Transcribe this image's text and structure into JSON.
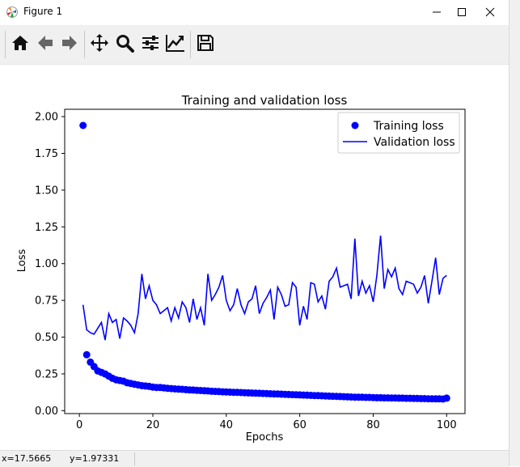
{
  "window": {
    "title": "Figure 1",
    "buttons": {
      "minimize": "minimize-icon",
      "maximize": "maximize-icon",
      "close": "close-icon"
    }
  },
  "toolbar": {
    "buttons": [
      "home-icon",
      "back-arrow-icon",
      "forward-arrow-icon",
      "pan-icon",
      "zoom-icon",
      "configure-subplots-icon",
      "edit-axis-icon",
      "save-icon"
    ]
  },
  "status": {
    "x": "x=17.5665",
    "y": "y=1.97331"
  },
  "colors": {
    "series": "#0000ff",
    "toolbar_bg": "#f0f0f0"
  },
  "chart_data": {
    "type": "line",
    "title": "Training and validation loss",
    "xlabel": "Epochs",
    "ylabel": "Loss",
    "xlim": [
      -4,
      105
    ],
    "ylim": [
      -0.02,
      2.05
    ],
    "xticks": [
      0,
      20,
      40,
      60,
      80,
      100
    ],
    "yticks": [
      0.0,
      0.25,
      0.5,
      0.75,
      1.0,
      1.25,
      1.5,
      1.75,
      2.0
    ],
    "xtick_labels": [
      "0",
      "20",
      "40",
      "60",
      "80",
      "100"
    ],
    "ytick_labels": [
      "0.00",
      "0.25",
      "0.50",
      "0.75",
      "1.00",
      "1.25",
      "1.50",
      "1.75",
      "2.00"
    ],
    "legend": {
      "placement": "upper right",
      "entries": [
        "Training loss",
        "Validation loss"
      ]
    },
    "x": [
      1,
      2,
      3,
      4,
      5,
      6,
      7,
      8,
      9,
      10,
      11,
      12,
      13,
      14,
      15,
      16,
      17,
      18,
      19,
      20,
      21,
      22,
      23,
      24,
      25,
      26,
      27,
      28,
      29,
      30,
      31,
      32,
      33,
      34,
      35,
      36,
      37,
      38,
      39,
      40,
      41,
      42,
      43,
      44,
      45,
      46,
      47,
      48,
      49,
      50,
      51,
      52,
      53,
      54,
      55,
      56,
      57,
      58,
      59,
      60,
      61,
      62,
      63,
      64,
      65,
      66,
      67,
      68,
      69,
      70,
      71,
      72,
      73,
      74,
      75,
      76,
      77,
      78,
      79,
      80,
      81,
      82,
      83,
      84,
      85,
      86,
      87,
      88,
      89,
      90,
      91,
      92,
      93,
      94,
      95,
      96,
      97,
      98,
      99,
      100
    ],
    "series": [
      {
        "name": "Training loss",
        "style": "dots",
        "values": [
          1.94,
          0.38,
          0.33,
          0.3,
          0.27,
          0.26,
          0.25,
          0.235,
          0.22,
          0.21,
          0.205,
          0.2,
          0.19,
          0.185,
          0.18,
          0.175,
          0.17,
          0.168,
          0.165,
          0.16,
          0.158,
          0.157,
          0.155,
          0.152,
          0.15,
          0.148,
          0.146,
          0.145,
          0.143,
          0.141,
          0.14,
          0.138,
          0.137,
          0.135,
          0.134,
          0.132,
          0.131,
          0.13,
          0.128,
          0.127,
          0.126,
          0.125,
          0.124,
          0.123,
          0.122,
          0.121,
          0.12,
          0.119,
          0.118,
          0.117,
          0.116,
          0.115,
          0.114,
          0.113,
          0.112,
          0.111,
          0.11,
          0.109,
          0.108,
          0.107,
          0.106,
          0.105,
          0.104,
          0.103,
          0.102,
          0.101,
          0.1,
          0.099,
          0.098,
          0.097,
          0.096,
          0.095,
          0.094,
          0.093,
          0.092,
          0.092,
          0.091,
          0.09,
          0.09,
          0.089,
          0.088,
          0.088,
          0.087,
          0.087,
          0.086,
          0.086,
          0.085,
          0.085,
          0.084,
          0.084,
          0.083,
          0.083,
          0.082,
          0.082,
          0.081,
          0.081,
          0.08,
          0.08,
          0.079,
          0.085
        ]
      },
      {
        "name": "Validation loss",
        "style": "line",
        "values": [
          0.72,
          0.55,
          0.53,
          0.52,
          0.56,
          0.6,
          0.48,
          0.66,
          0.6,
          0.62,
          0.49,
          0.63,
          0.61,
          0.58,
          0.53,
          0.66,
          0.93,
          0.76,
          0.85,
          0.75,
          0.72,
          0.66,
          0.68,
          0.7,
          0.61,
          0.7,
          0.63,
          0.74,
          0.7,
          0.6,
          0.76,
          0.62,
          0.7,
          0.58,
          0.93,
          0.75,
          0.79,
          0.84,
          0.92,
          0.75,
          0.68,
          0.72,
          0.83,
          0.72,
          0.66,
          0.74,
          0.76,
          0.85,
          0.66,
          0.73,
          0.77,
          0.82,
          0.62,
          0.84,
          0.79,
          0.71,
          0.72,
          0.87,
          0.84,
          0.58,
          0.71,
          0.62,
          0.87,
          0.86,
          0.74,
          0.78,
          0.69,
          0.88,
          0.91,
          0.97,
          0.84,
          0.85,
          0.86,
          0.76,
          1.17,
          0.78,
          0.88,
          0.8,
          0.85,
          0.74,
          0.92,
          1.19,
          0.83,
          0.96,
          0.91,
          0.97,
          0.83,
          0.79,
          0.88,
          0.87,
          0.86,
          0.8,
          0.84,
          0.92,
          0.73,
          0.88,
          1.04,
          0.79,
          0.9,
          0.92
        ]
      }
    ]
  }
}
